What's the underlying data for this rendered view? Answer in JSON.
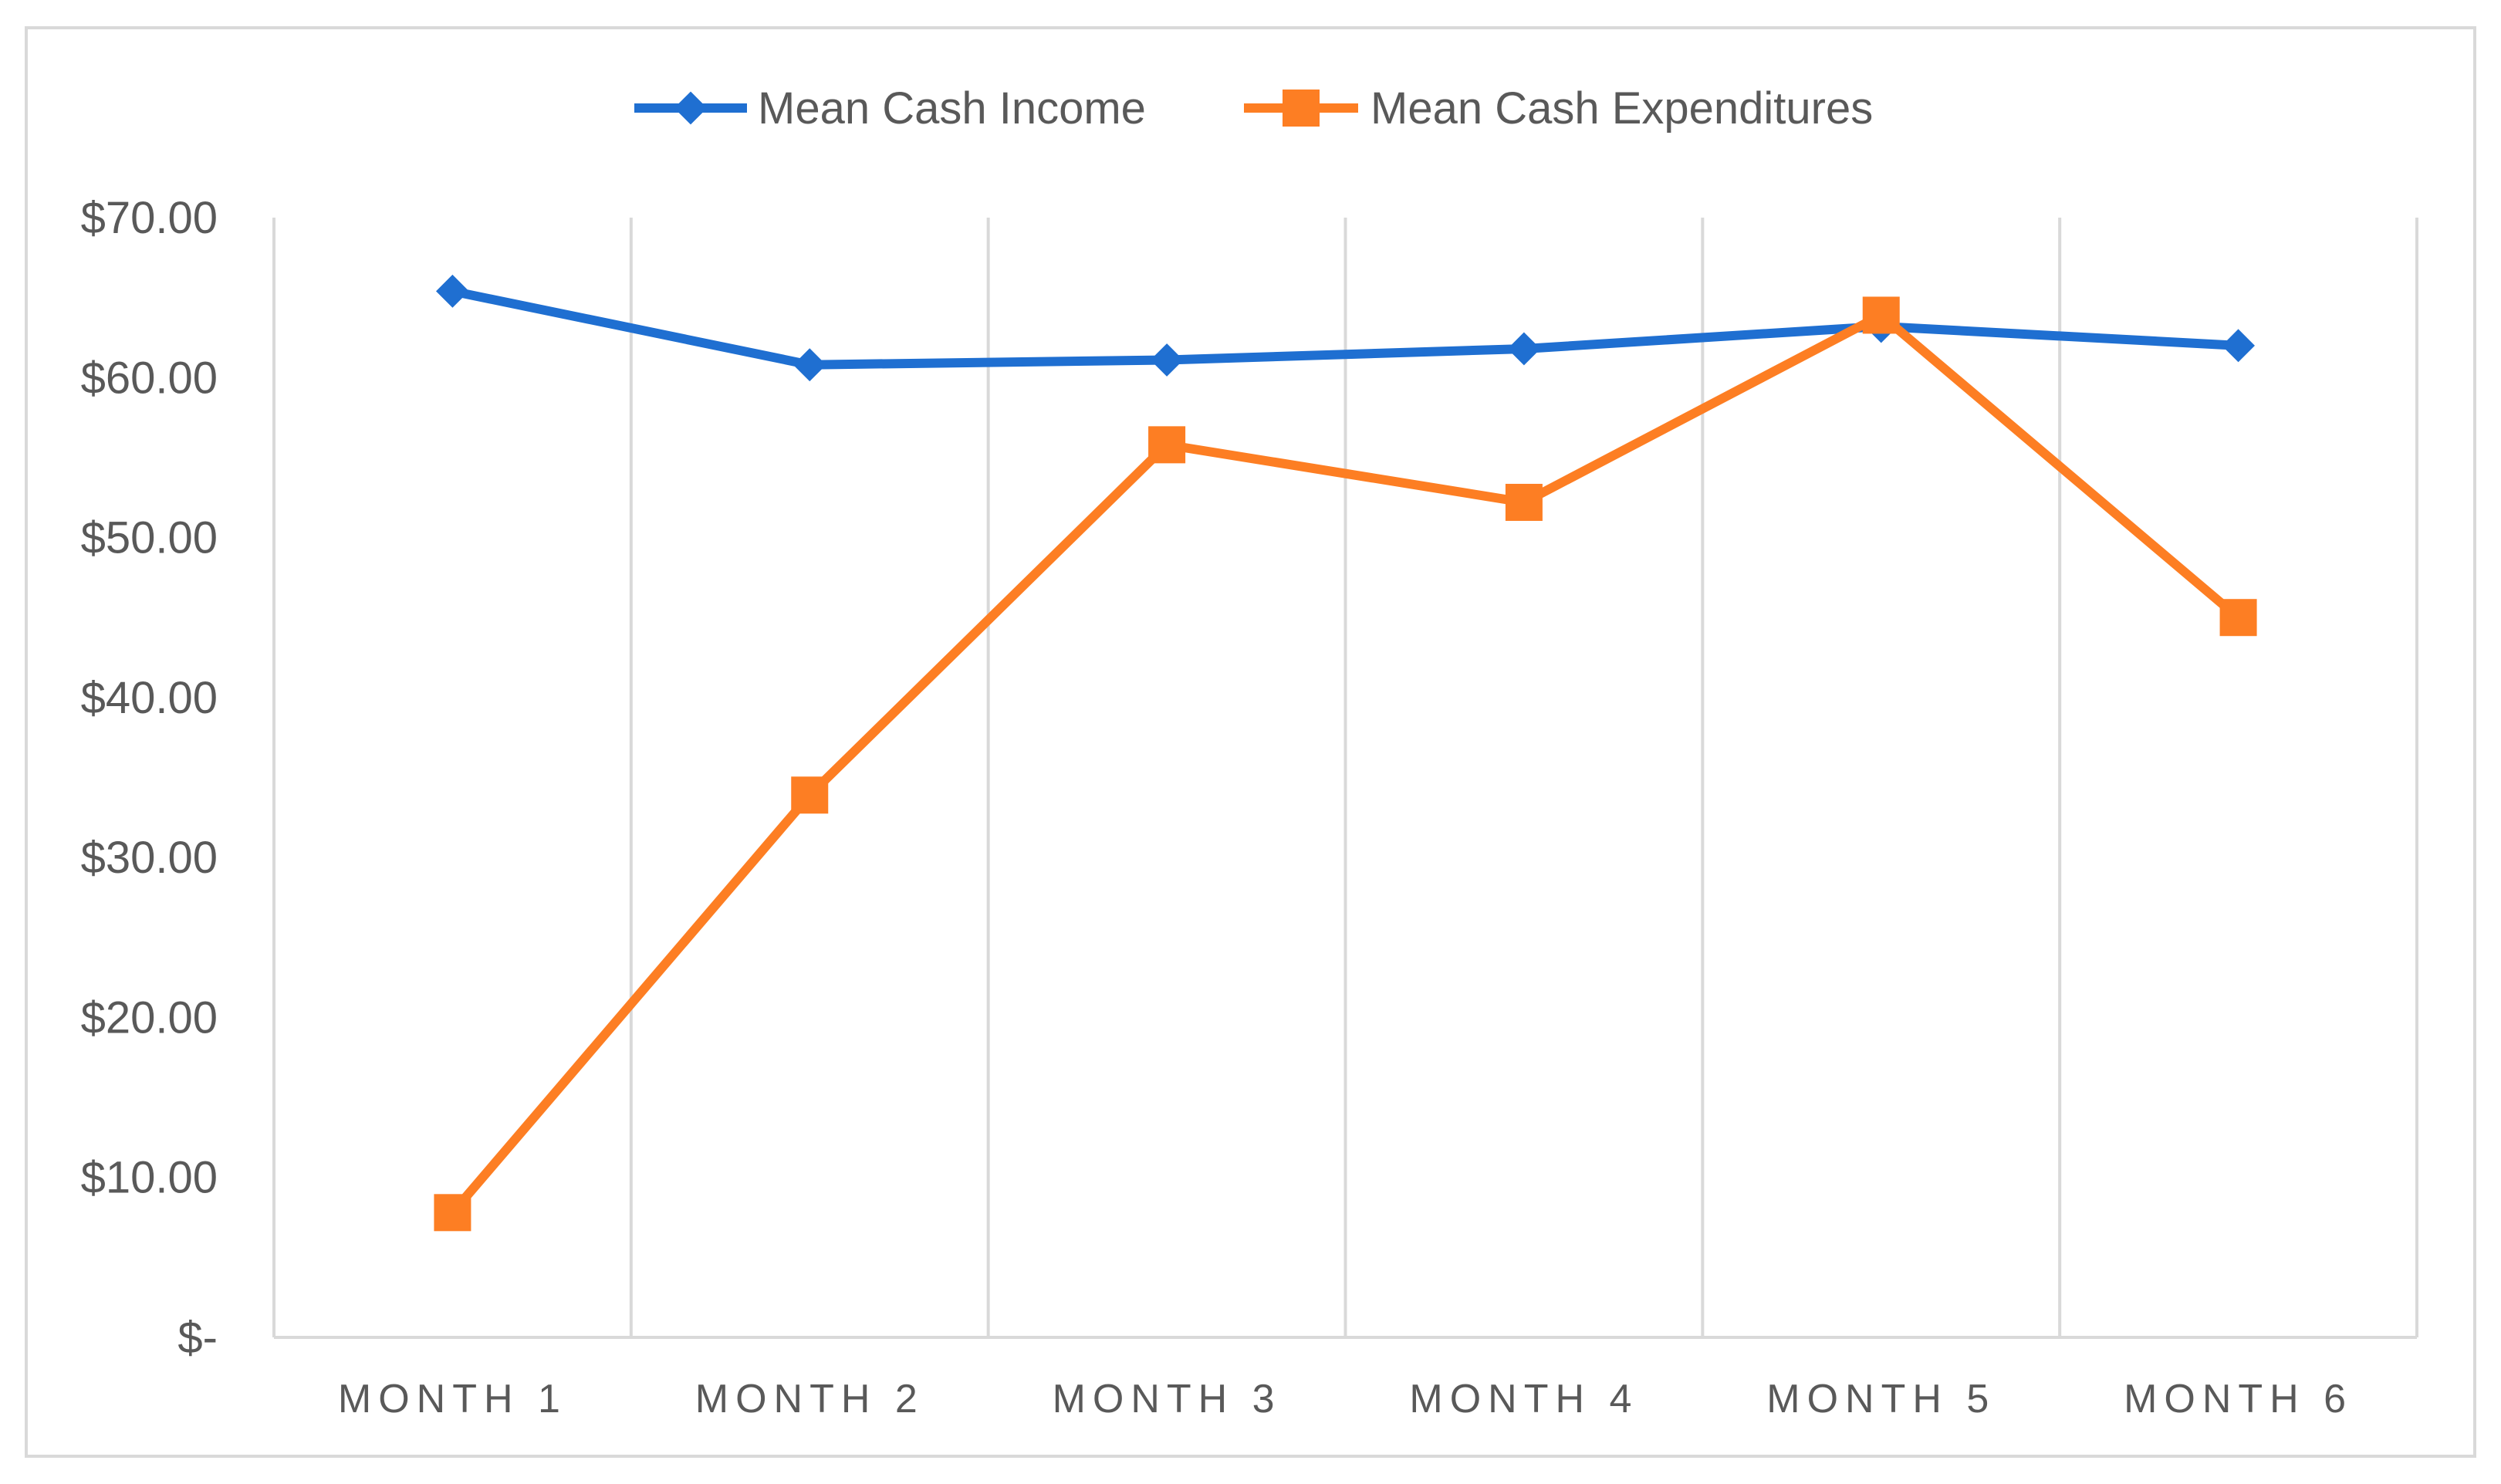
{
  "chart_data": {
    "type": "line",
    "categories": [
      "MONTH 1",
      "MONTH 2",
      "MONTH 3",
      "MONTH 4",
      "MONTH 5",
      "MONTH 6"
    ],
    "series": [
      {
        "name": "Mean Cash Income",
        "color": "#1f6fd1",
        "marker": "diamond",
        "values": [
          65.4,
          60.8,
          61.1,
          61.8,
          63.2,
          62.0
        ]
      },
      {
        "name": "Mean Cash Expenditures",
        "color": "#fd7e23",
        "marker": "square",
        "values": [
          7.8,
          33.9,
          55.8,
          52.2,
          63.9,
          45.0
        ]
      }
    ],
    "ylim": [
      0,
      70
    ],
    "yticks": [
      0,
      10,
      20,
      30,
      40,
      50,
      60,
      70
    ],
    "ytick_labels": [
      "$-",
      "$10.00",
      "$20.00",
      "$30.00",
      "$40.00",
      "$50.00",
      "$60.00",
      "$70.00"
    ],
    "title": "",
    "xlabel": "",
    "ylabel": "",
    "grid": "vertical lines between categories",
    "legend_position": "top-center",
    "gridline_color": "#d9d9d9"
  }
}
